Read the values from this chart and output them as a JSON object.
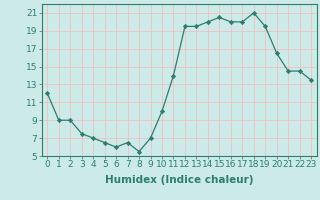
{
  "x": [
    0,
    1,
    2,
    3,
    4,
    5,
    6,
    7,
    8,
    9,
    10,
    11,
    12,
    13,
    14,
    15,
    16,
    17,
    18,
    19,
    20,
    21,
    22,
    23
  ],
  "y": [
    12,
    9,
    9,
    7.5,
    7,
    6.5,
    6,
    6.5,
    5.5,
    7,
    10,
    14,
    19.5,
    19.5,
    20,
    20.5,
    20,
    20,
    21,
    19.5,
    16.5,
    14.5,
    14.5,
    13.5
  ],
  "line_color": "#2e7d6e",
  "marker": "D",
  "marker_size": 2.2,
  "bg_color": "#cceae8",
  "grid_color": "#f0c0c0",
  "xlim": [
    -0.5,
    23.5
  ],
  "ylim": [
    5,
    22
  ],
  "yticks": [
    5,
    7,
    9,
    11,
    13,
    15,
    17,
    19,
    21
  ],
  "xtick_labels": [
    "0",
    "1",
    "2",
    "3",
    "4",
    "5",
    "6",
    "7",
    "8",
    "9",
    "10",
    "11",
    "12",
    "13",
    "14",
    "15",
    "16",
    "17",
    "18",
    "19",
    "20",
    "21",
    "22",
    "23"
  ],
  "xlabel": "Humidex (Indice chaleur)",
  "xlabel_fontsize": 7.5,
  "tick_fontsize": 6.5
}
